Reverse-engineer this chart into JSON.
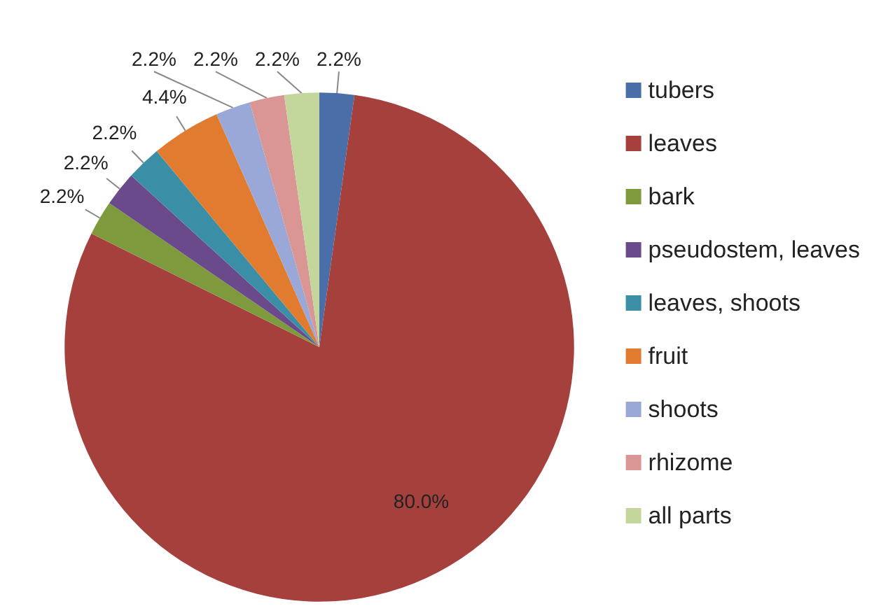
{
  "chart_data": {
    "type": "pie",
    "categories": [
      "tubers",
      "leaves",
      "bark",
      "pseudostem, leaves",
      "leaves, shoots",
      "fruit",
      "shoots",
      "rhizome",
      "all parts"
    ],
    "values": [
      2.2,
      80.0,
      2.2,
      2.2,
      2.2,
      4.4,
      2.2,
      2.2,
      2.2
    ],
    "value_labels": [
      "2.2%",
      "80.0%",
      "2.2%",
      "2.2%",
      "2.2%",
      "4.4%",
      "2.2%",
      "2.2%",
      "2.2%"
    ],
    "colors": [
      "#4a6ea8",
      "#a5403c",
      "#7f9a3c",
      "#6b4a8c",
      "#3a8fa6",
      "#e07b30",
      "#9aa8d8",
      "#d99694",
      "#c3d69b"
    ],
    "legend": "right"
  }
}
